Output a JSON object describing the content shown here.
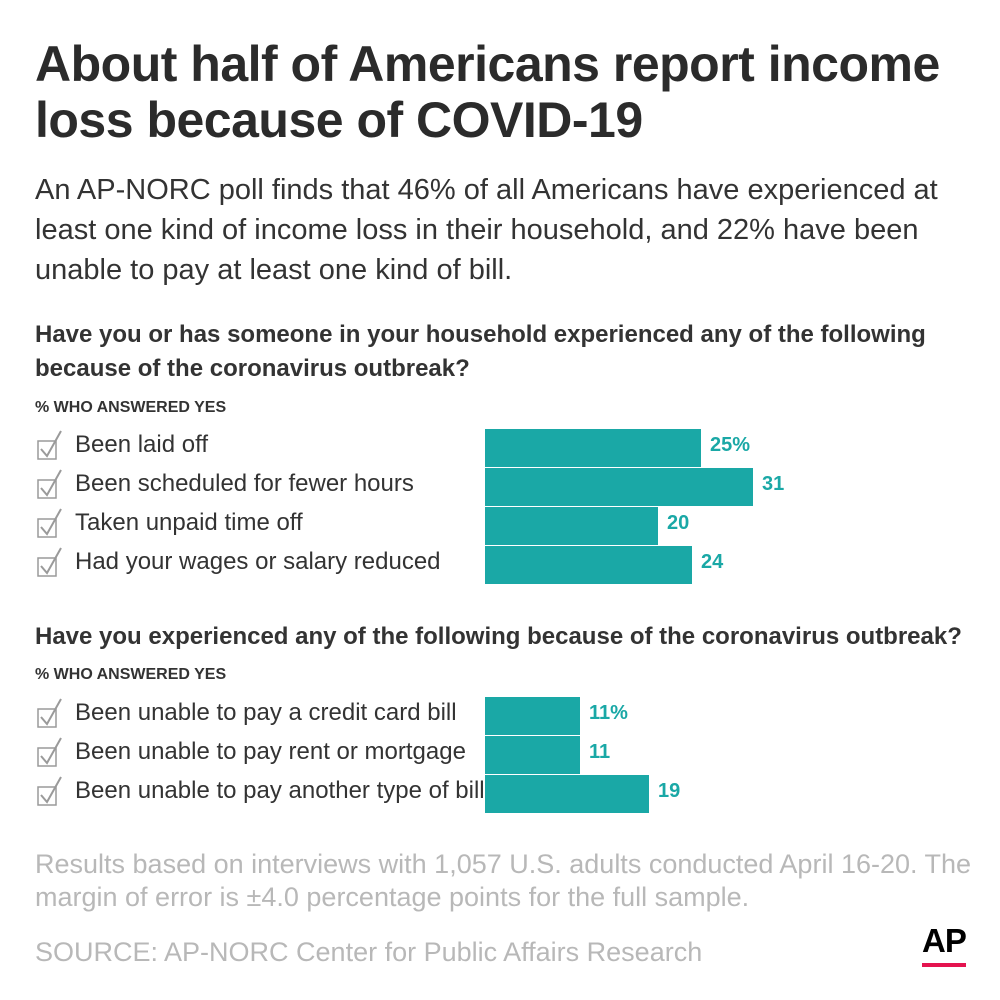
{
  "title": "About half of Americans report income loss because of COVID-19",
  "subtitle": "An AP-NORC poll finds that 46% of all Americans have experienced at least one kind of income loss in their household, and 22% have been unable to pay at least one kind of bill.",
  "accent_color": "#1aa8a6",
  "note": "Results based on interviews with 1,057 U.S. adults conducted April 16-20. The margin of error is ±4.0 percentage points for the full sample.",
  "source": "SOURCE: AP-NORC Center for Public Affairs Research",
  "logo": {
    "text": "AP",
    "accent_color": "#e4134f"
  },
  "icons": {
    "row_marker": "checkbox-check-icon"
  },
  "chart_data": [
    {
      "type": "bar",
      "title": "Have you or has someone in your household experienced any of the following because of the coronavirus outbreak?",
      "unit_label": "% WHO ANSWERED YES",
      "categories": [
        "Been laid off",
        "Been scheduled for fewer hours",
        "Taken unpaid time off",
        "Had your wages or salary reduced"
      ],
      "values": [
        25,
        31,
        20,
        24
      ],
      "value_labels": [
        "25%",
        "31",
        "20",
        "24"
      ],
      "orientation": "horizontal",
      "grid": false,
      "xlim": [
        0,
        31
      ]
    },
    {
      "type": "bar",
      "title": "Have you experienced any of the following because of the coronavirus outbreak?",
      "unit_label": "% WHO ANSWERED YES",
      "categories": [
        "Been unable to pay a credit card bill",
        "Been unable to pay rent or mortgage",
        "Been unable to pay another type of bill"
      ],
      "values": [
        11,
        11,
        19
      ],
      "value_labels": [
        "11%",
        "11",
        "19"
      ],
      "orientation": "horizontal",
      "grid": false,
      "xlim": [
        0,
        31
      ]
    }
  ]
}
